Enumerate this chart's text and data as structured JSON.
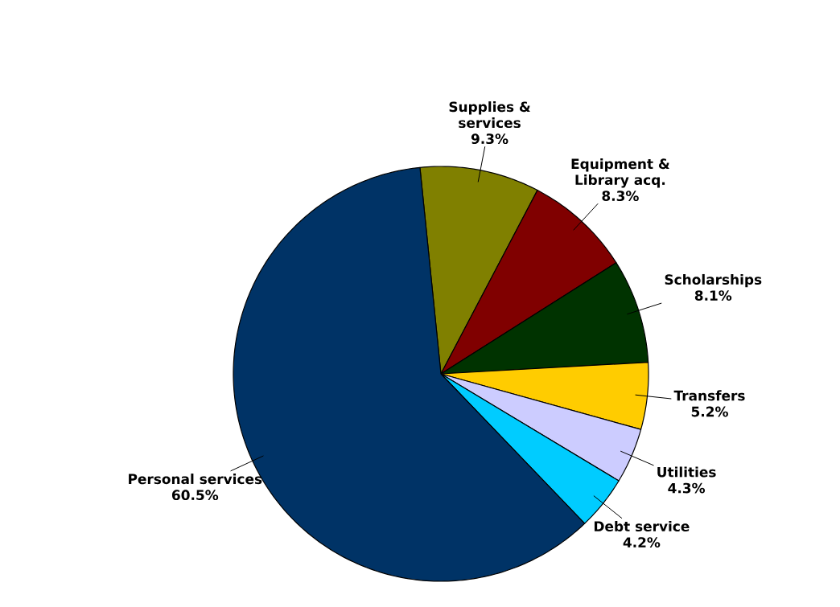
{
  "chart_data": {
    "type": "pie",
    "categories": [
      "Supplies & services",
      "Equipment & Library acq.",
      "Scholarships",
      "Transfers",
      "Utilities",
      "Debt service",
      "Personal services"
    ],
    "values": [
      9.3,
      8.3,
      8.1,
      5.2,
      4.3,
      4.2,
      60.5
    ],
    "value_labels": [
      "9.3%",
      "8.3%",
      "8.1%",
      "5.2%",
      "4.3%",
      "4.2%",
      "60.5%"
    ],
    "colors": [
      "#808000",
      "#800000",
      "#003300",
      "#ffcc00",
      "#ccccff",
      "#00ccff",
      "#003366"
    ]
  }
}
